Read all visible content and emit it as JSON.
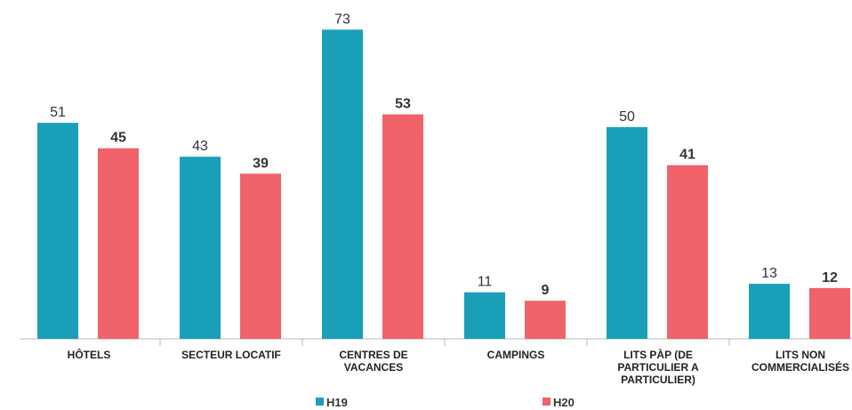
{
  "chart_data": {
    "type": "bar",
    "categories": [
      "HÔTELS",
      "SECTEUR LOCATIF",
      "CENTRES DE VACANCES",
      "CAMPINGS",
      "LITS PÀP (DE PARTICULIER A PARTICULIER)",
      "LITS NON COMMERCIALISÉS"
    ],
    "series": [
      {
        "name": "H19",
        "color": "#1a9fb8",
        "values": [
          51,
          43,
          73,
          11,
          50,
          13
        ]
      },
      {
        "name": "H20",
        "color": "#f0636a",
        "values": [
          45,
          39,
          53,
          9,
          41,
          12
        ]
      }
    ],
    "ylim": [
      0,
      80
    ]
  }
}
